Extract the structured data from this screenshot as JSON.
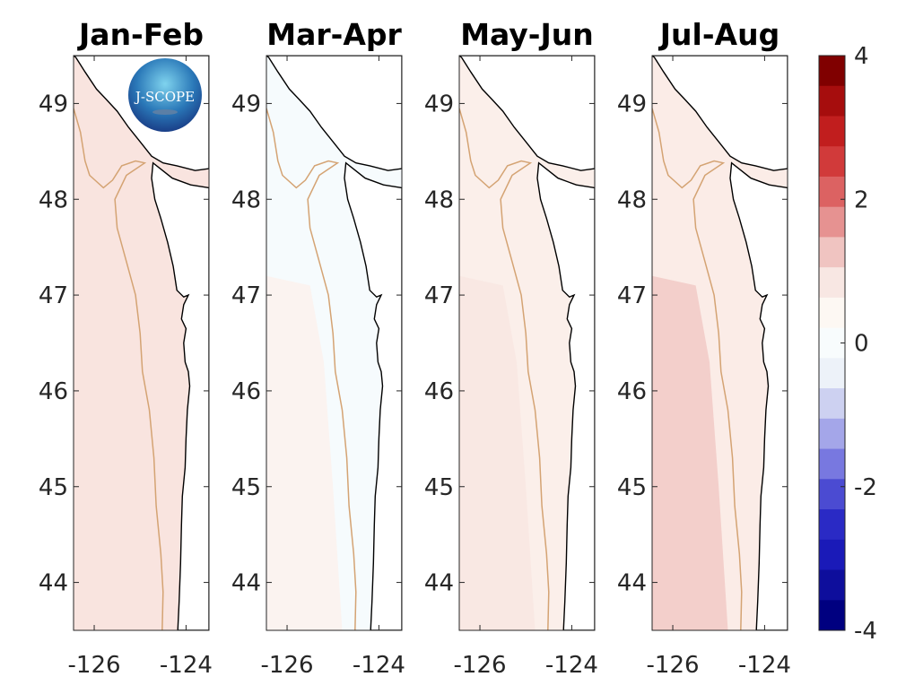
{
  "chart_data": {
    "type": "heatmap",
    "panels": [
      {
        "title": "Jan-Feb",
        "ocean_color": "#f9e4df"
      },
      {
        "title": "Mar-Apr",
        "ocean_color": "#f6fbfd",
        "offshore_color": "#fcf1ec"
      },
      {
        "title": "May-Jun",
        "ocean_color": "#fbefea",
        "offshore_color": "#f9e6e1"
      },
      {
        "title": "Jul-Aug",
        "ocean_color": "#fbece7",
        "offshore_color": "#f1c8c4"
      }
    ],
    "xlim": [
      -126.45,
      -123.5
    ],
    "ylim": [
      43.5,
      49.5
    ],
    "x_ticks": [
      -126,
      -124
    ],
    "x_tick_labels": [
      "-126",
      "-124"
    ],
    "y_ticks": [
      44,
      45,
      46,
      47,
      48,
      49
    ],
    "y_tick_labels": [
      "44",
      "45",
      "46",
      "47",
      "48",
      "49"
    ],
    "colorbar": {
      "range": [
        -4,
        4
      ],
      "ticks": [
        4,
        2,
        0,
        -2,
        -4
      ],
      "tick_labels": [
        "4",
        "2",
        "0",
        "-2",
        "-4"
      ],
      "colors": [
        "#000080",
        "#0b0d96",
        "#1717b5",
        "#2a2ac3",
        "#4a4ad0",
        "#7878e0",
        "#a3a3e8",
        "#cdd0f0",
        "#ecf1f8",
        "#f8fcfd",
        "#fdf7f2",
        "#f8e6e2",
        "#f0c3c0",
        "#e59190",
        "#dd6161",
        "#d03a3a",
        "#be1e1e",
        "#a40f0f",
        "#800000"
      ]
    },
    "coastline_color": "#000000",
    "isobath_color": "#d4a373"
  },
  "logo": {
    "text": "J-SCOPE"
  }
}
